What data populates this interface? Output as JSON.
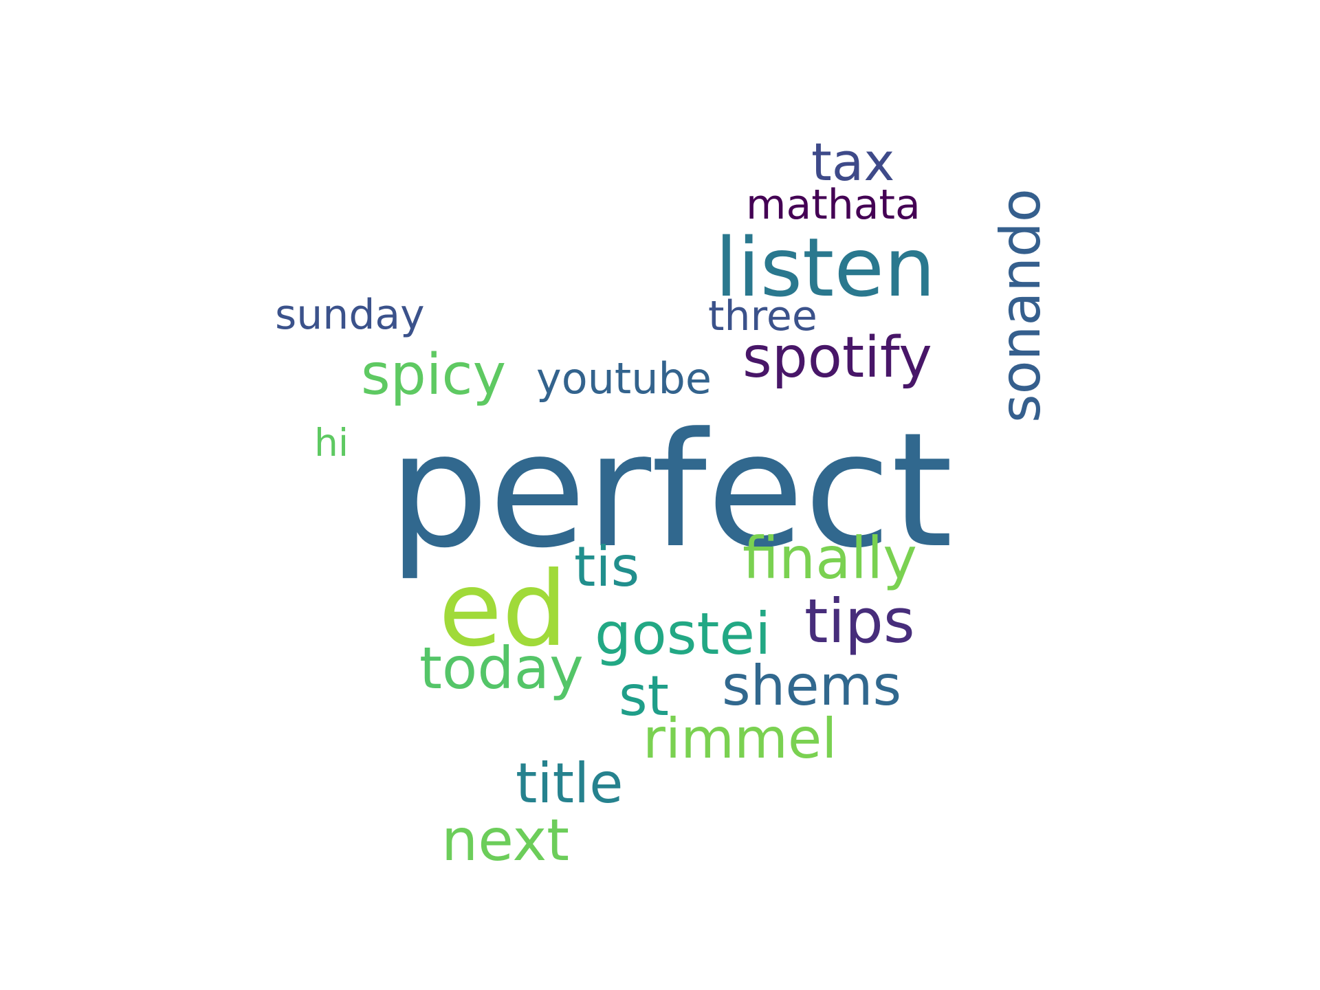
{
  "words": {
    "perfect": {
      "text": "perfect",
      "color": "#31688e"
    },
    "ed": {
      "text": "ed",
      "color": "#a0da39"
    },
    "listen": {
      "text": "listen",
      "color": "#2a788e"
    },
    "tax": {
      "text": "tax",
      "color": "#3e4a89"
    },
    "mathata": {
      "text": "mathata",
      "color": "#440154"
    },
    "sonando": {
      "text": "sonando",
      "color": "#355f8d"
    },
    "sunday": {
      "text": "sunday",
      "color": "#3b528b"
    },
    "three": {
      "text": "three",
      "color": "#3b528b"
    },
    "spotify": {
      "text": "spotify",
      "color": "#481668"
    },
    "spicy": {
      "text": "spicy",
      "color": "#5ec962"
    },
    "youtube": {
      "text": "youtube",
      "color": "#33638d"
    },
    "hi": {
      "text": "hi",
      "color": "#5ec962"
    },
    "finally": {
      "text": "finally",
      "color": "#7ad151"
    },
    "tis": {
      "text": "tis",
      "color": "#218f8d"
    },
    "tips": {
      "text": "tips",
      "color": "#472d7b"
    },
    "gostei": {
      "text": "gostei",
      "color": "#22a884"
    },
    "today": {
      "text": "today",
      "color": "#54c568"
    },
    "st": {
      "text": "st",
      "color": "#1f9e89"
    },
    "shems": {
      "text": "shems",
      "color": "#31688e"
    },
    "rimmel": {
      "text": "rimmel",
      "color": "#7ad151"
    },
    "title": {
      "text": "title",
      "color": "#26828e"
    },
    "next": {
      "text": "next",
      "color": "#6ccd5a"
    }
  }
}
